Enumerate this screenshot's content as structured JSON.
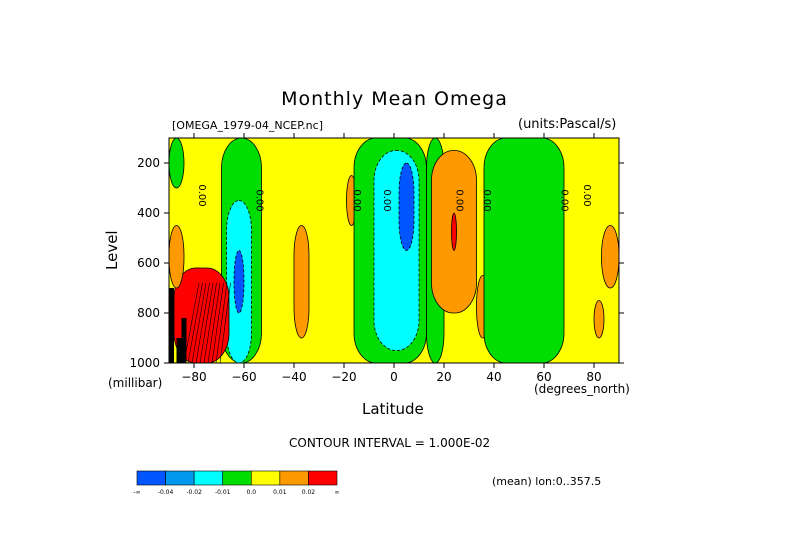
{
  "chart_data": {
    "type": "heatmap",
    "title": "Monthly Mean Omega",
    "subtitle_left": "[OMEGA_1979-04_NCEP.nc]",
    "subtitle_right": "(units:Pascal/s)",
    "xlabel": "Latitude",
    "x_unit": "(degrees_north)",
    "ylabel": "Level",
    "y_unit": "(millibar)",
    "xlim": [
      -90,
      90
    ],
    "ylim": [
      1000,
      100
    ],
    "x_ticks": [
      -80,
      -60,
      -40,
      -20,
      0,
      20,
      40,
      60,
      80
    ],
    "y_ticks": [
      1000,
      800,
      600,
      400,
      200
    ],
    "contour_interval_label": "CONTOUR INTERVAL = 1.000E-02",
    "footnote": "(mean) lon:0..357.5",
    "contour_labels": [
      "0.00",
      "0.00",
      "0.00",
      "0.00",
      "0.00",
      "0.00",
      "0.00",
      "0.00"
    ],
    "colorbar": {
      "colors": [
        "#0055ff",
        "#0099ee",
        "#00ffff",
        "#00dd00",
        "#ffff00",
        "#ff9900",
        "#ff0000"
      ],
      "tick_labels": [
        "-∞",
        "-0.04",
        "-0.02",
        "-0.01",
        "0.0",
        "0.01",
        "0.02",
        "∞"
      ]
    },
    "regions": [
      {
        "level": "yellow",
        "x": [
          -90,
          90
        ],
        "y": [
          100,
          1000
        ]
      },
      {
        "level": "green",
        "x": [
          -90,
          -84
        ],
        "y": [
          100,
          300
        ]
      },
      {
        "level": "green",
        "x": [
          -69,
          -53
        ],
        "y": [
          100,
          1000
        ]
      },
      {
        "level": "cyan",
        "x": [
          -67,
          -57
        ],
        "y": [
          350,
          1000
        ]
      },
      {
        "level": "blue",
        "x": [
          -64,
          -60
        ],
        "y": [
          550,
          800
        ]
      },
      {
        "level": "green",
        "x": [
          -83,
          -74
        ],
        "y": [
          620,
          1000
        ]
      },
      {
        "level": "red",
        "x": [
          -88,
          -66
        ],
        "y": [
          620,
          1000
        ]
      },
      {
        "level": "orange",
        "x": [
          -90,
          -84
        ],
        "y": [
          450,
          700
        ]
      },
      {
        "level": "orange",
        "x": [
          -40,
          -34
        ],
        "y": [
          450,
          900
        ]
      },
      {
        "level": "orange",
        "x": [
          -19,
          -15
        ],
        "y": [
          250,
          450
        ]
      },
      {
        "level": "green",
        "x": [
          -16,
          13
        ],
        "y": [
          100,
          1000
        ]
      },
      {
        "level": "cyan",
        "x": [
          -8,
          10
        ],
        "y": [
          150,
          950
        ]
      },
      {
        "level": "blue",
        "x": [
          2,
          8
        ],
        "y": [
          200,
          550
        ]
      },
      {
        "level": "green",
        "x": [
          13,
          20
        ],
        "y": [
          100,
          1000
        ]
      },
      {
        "level": "orange",
        "x": [
          15,
          33
        ],
        "y": [
          150,
          800
        ]
      },
      {
        "level": "red",
        "x": [
          23,
          25
        ],
        "y": [
          400,
          550
        ]
      },
      {
        "level": "orange",
        "x": [
          33,
          38
        ],
        "y": [
          650,
          900
        ]
      },
      {
        "level": "green",
        "x": [
          36,
          68
        ],
        "y": [
          100,
          1000
        ]
      },
      {
        "level": "orange",
        "x": [
          83,
          90
        ],
        "y": [
          450,
          700
        ]
      },
      {
        "level": "orange",
        "x": [
          80,
          84
        ],
        "y": [
          750,
          900
        ]
      }
    ]
  }
}
